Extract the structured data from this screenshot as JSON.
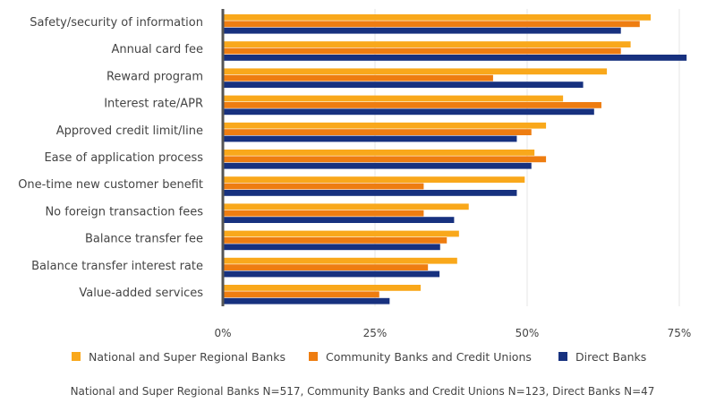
{
  "chart_data": {
    "type": "bar",
    "orientation": "horizontal",
    "categories": [
      "Safety/security of information",
      "Annual card fee",
      "Reward program",
      "Interest rate/APR",
      "Approved credit limit/line",
      "Ease of application process",
      "One-time new customer benefit",
      "No foreign transaction fees",
      "Balance transfer fee",
      "Balance transfer interest rate",
      "Value-added services"
    ],
    "series": [
      {
        "name": "National and Super Regional Banks",
        "color": "#F9A81B",
        "values": [
          70.3,
          67.0,
          63.1,
          55.9,
          53.1,
          51.2,
          49.6,
          40.4,
          38.8,
          38.5,
          32.5
        ]
      },
      {
        "name": "Community Banks and Credit Unions",
        "color": "#EE7D11",
        "values": [
          68.5,
          65.4,
          44.4,
          62.2,
          50.7,
          53.1,
          33.0,
          33.0,
          36.8,
          33.7,
          25.7
        ]
      },
      {
        "name": "Direct Banks",
        "color": "#17317F",
        "values": [
          65.4,
          76.2,
          59.2,
          61.0,
          48.3,
          50.7,
          48.3,
          38.0,
          35.7,
          35.6,
          27.4
        ]
      }
    ],
    "xlim": [
      0,
      75
    ],
    "xticks": [
      "0%",
      "25%",
      "50%",
      "75%"
    ],
    "xtick_values": [
      0,
      25,
      50,
      75
    ],
    "grid": true,
    "legend_position": "bottom",
    "note": "National and Super Regional Banks N=517, Community Banks and Credit Unions N=123, Direct Banks N=47"
  }
}
